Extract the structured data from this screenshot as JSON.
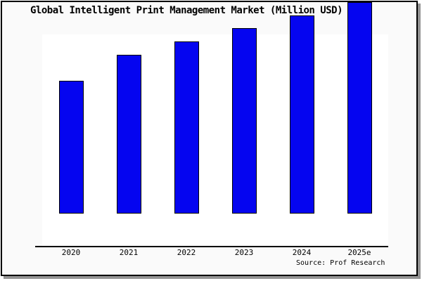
{
  "chart_data": {
    "type": "bar",
    "title": "Global Intelligent Print Management Market (Million USD)",
    "categories": [
      "2020",
      "2021",
      "2022",
      "2023",
      "2024",
      "2025e"
    ],
    "values": [
      189,
      226,
      245,
      264,
      282,
      301
    ],
    "values_unit": "relative bar height in px (no y-axis scale shown)",
    "xlabel": "",
    "ylabel": "",
    "y_axis_labels_visible": false,
    "grid": false,
    "legend": false,
    "bar_color": "#0505f0",
    "bar_outline_color": "#000000",
    "source": "Source: Prof Research"
  },
  "colors": {
    "frame_background": "#fafafa",
    "plot_background": "#ffffff",
    "frame_border": "#000000",
    "shadow": "#949494",
    "text": "#000000"
  }
}
